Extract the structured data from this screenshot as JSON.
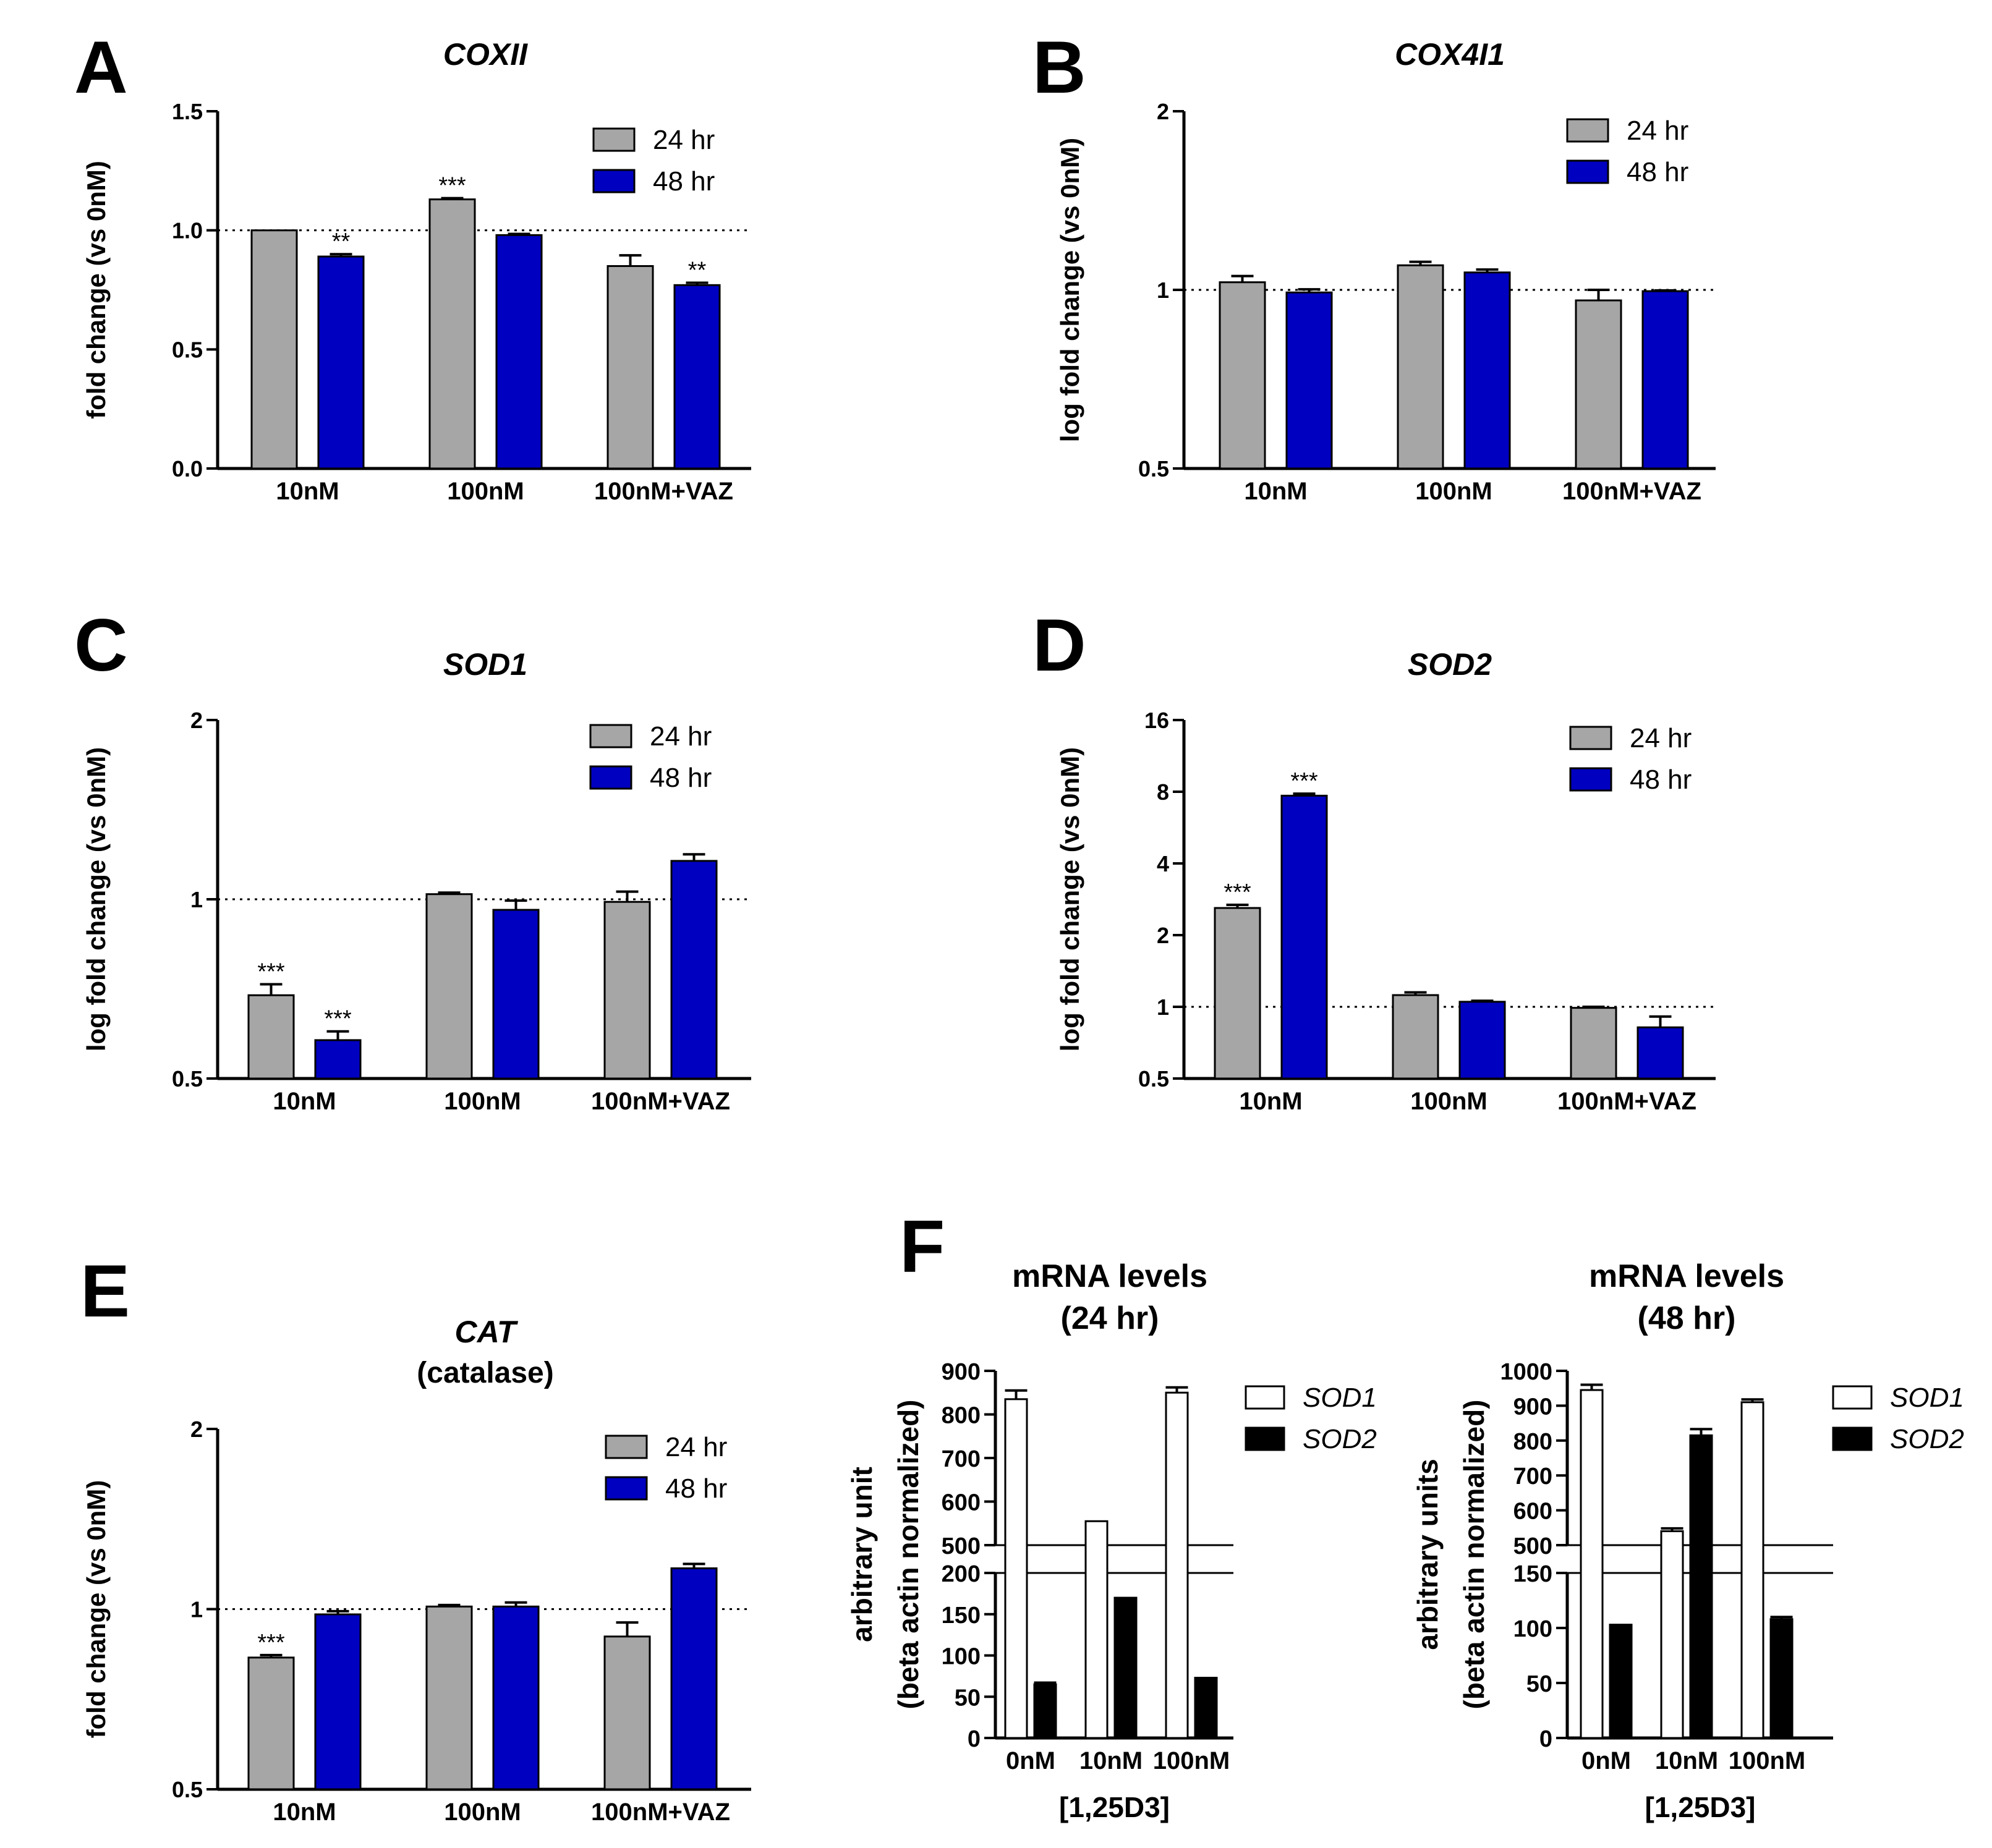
{
  "figure": {
    "colors": {
      "gray": "#a6a6a6",
      "blue": "#0000c0",
      "black": "#000000",
      "white": "#ffffff"
    }
  },
  "chart_data": [
    {
      "panel": "A",
      "type": "bar",
      "title": "COXII",
      "ylabel": "fold change (vs 0nM)",
      "scale": "linear",
      "ylim": [
        0,
        1.5
      ],
      "ticks": [
        0.0,
        0.5,
        1.0,
        1.5
      ],
      "tick_labels": [
        "0.0",
        "0.5",
        "1.0",
        "1.5"
      ],
      "categories": [
        "10nM",
        "100nM",
        "100nM+VAZ"
      ],
      "reference_line": 1.0,
      "series": [
        {
          "name": "24 hr",
          "color": "gray",
          "values": [
            1.0,
            1.13,
            0.85
          ],
          "errors": [
            0.0,
            0.005,
            0.045
          ],
          "sig": [
            "",
            "***",
            ""
          ]
        },
        {
          "name": "48 hr",
          "color": "blue",
          "values": [
            0.89,
            0.98,
            0.77
          ],
          "errors": [
            0.01,
            0.005,
            0.01
          ],
          "sig": [
            "**",
            "",
            "**"
          ]
        }
      ]
    },
    {
      "panel": "B",
      "type": "bar",
      "title": "COX4I1",
      "ylabel": "log fold change (vs 0nM)",
      "scale": "log2",
      "ylim": [
        0.5,
        2
      ],
      "ticks": [
        0.5,
        1,
        2
      ],
      "tick_labels": [
        "0.5",
        "1",
        "2"
      ],
      "categories": [
        "10nM",
        "100nM",
        "100nM+VAZ"
      ],
      "reference_line": 1,
      "series": [
        {
          "name": "24 hr",
          "color": "gray",
          "values": [
            1.03,
            1.1,
            0.96
          ],
          "errors": [
            0.025,
            0.015,
            0.04
          ],
          "sig": [
            "",
            "",
            ""
          ]
        },
        {
          "name": "48 hr",
          "color": "blue",
          "values": [
            0.99,
            1.07,
            0.995
          ],
          "errors": [
            0.012,
            0.012,
            0.003
          ],
          "sig": [
            "",
            "",
            ""
          ]
        }
      ]
    },
    {
      "panel": "C",
      "type": "bar",
      "title": "SOD1",
      "ylabel": "log fold change (vs 0nM)",
      "scale": "log2",
      "ylim": [
        0.5,
        2
      ],
      "ticks": [
        0.5,
        1,
        2
      ],
      "tick_labels": [
        "0.5",
        "1",
        "2"
      ],
      "categories": [
        "10nM",
        "100nM",
        "100nM+VAZ"
      ],
      "reference_line": 1,
      "series": [
        {
          "name": "24 hr",
          "color": "gray",
          "values": [
            0.69,
            1.02,
            0.99
          ],
          "errors": [
            0.03,
            0.006,
            0.04
          ],
          "sig": [
            "***",
            "",
            ""
          ]
        },
        {
          "name": "48 hr",
          "color": "blue",
          "values": [
            0.58,
            0.96,
            1.16
          ],
          "errors": [
            0.02,
            0.035,
            0.03
          ],
          "sig": [
            "***",
            "",
            ""
          ]
        }
      ]
    },
    {
      "panel": "D",
      "type": "bar",
      "title": "SOD2",
      "ylabel": "log fold change (vs 0nM)",
      "scale": "log2",
      "ylim": [
        0.5,
        16
      ],
      "ticks": [
        0.5,
        1,
        2,
        4,
        8,
        16
      ],
      "tick_labels": [
        "0.5",
        "1",
        "2",
        "4",
        "8",
        "16"
      ],
      "categories": [
        "10nM",
        "100nM",
        "100nM+VAZ"
      ],
      "reference_line": 1,
      "series": [
        {
          "name": "24 hr",
          "color": "gray",
          "values": [
            2.6,
            1.12,
            0.99
          ],
          "errors": [
            0.08,
            0.03,
            0.01
          ],
          "sig": [
            "***",
            "",
            ""
          ]
        },
        {
          "name": "48 hr",
          "color": "blue",
          "values": [
            7.7,
            1.05,
            0.82
          ],
          "errors": [
            0.15,
            0.01,
            0.09
          ],
          "sig": [
            "***",
            "",
            ""
          ]
        }
      ]
    },
    {
      "panel": "E",
      "type": "bar",
      "title": "CAT",
      "subtitle": "(catalase)",
      "ylabel": "fold change (vs 0nM)",
      "scale": "log2",
      "ylim": [
        0.5,
        2
      ],
      "ticks": [
        0.5,
        1,
        2
      ],
      "tick_labels": [
        "0.5",
        "1",
        "2"
      ],
      "categories": [
        "10nM",
        "100nM",
        "100nM+VAZ"
      ],
      "reference_line": 1,
      "series": [
        {
          "name": "24 hr",
          "color": "gray",
          "values": [
            0.83,
            1.01,
            0.9
          ],
          "errors": [
            0.008,
            0.006,
            0.05
          ],
          "sig": [
            "***",
            "",
            ""
          ]
        },
        {
          "name": "48 hr",
          "color": "blue",
          "values": [
            0.98,
            1.01,
            1.17
          ],
          "errors": [
            0.012,
            0.016,
            0.02
          ],
          "sig": [
            "",
            "",
            ""
          ]
        }
      ]
    },
    {
      "panel": "F",
      "type": "bar",
      "title": "mRNA levels",
      "subtitle": "(24 hr)",
      "ylabel": "arbitrary unit",
      "ylabel2": "(beta actin normalized)",
      "scale": "broken",
      "ylim": [
        0,
        900
      ],
      "lower_ticks": [
        0,
        50,
        100,
        150,
        200
      ],
      "lower_tick_labels": [
        "0",
        "50",
        "100",
        "150",
        "200"
      ],
      "upper_ticks": [
        500,
        600,
        700,
        800,
        900
      ],
      "upper_tick_labels": [
        "500",
        "600",
        "700",
        "800",
        "900"
      ],
      "categories": [
        "0nM",
        "10nM",
        "100nM"
      ],
      "xlabel": "[1,25D3]",
      "series": [
        {
          "name": "SOD1",
          "color": "white",
          "values": [
            835,
            555,
            850
          ],
          "errors": [
            20,
            0,
            12
          ],
          "sig": [
            "",
            "",
            ""
          ]
        },
        {
          "name": "SOD2",
          "color": "black",
          "values": [
            65,
            170,
            73
          ],
          "errors": [
            2,
            0,
            0
          ],
          "sig": [
            "",
            "",
            ""
          ]
        }
      ]
    },
    {
      "panel": "",
      "type": "bar",
      "title": "mRNA levels",
      "subtitle": "(48 hr)",
      "ylabel": "arbitrary units",
      "ylabel2": "(beta actin normalized)",
      "scale": "broken",
      "ylim": [
        0,
        1000
      ],
      "lower_ticks": [
        0,
        50,
        100,
        150
      ],
      "lower_tick_labels": [
        "0",
        "50",
        "100",
        "150"
      ],
      "upper_ticks": [
        500,
        600,
        700,
        800,
        900,
        1000
      ],
      "upper_tick_labels": [
        "500",
        "600",
        "700",
        "800",
        "900",
        "1000"
      ],
      "categories": [
        "0nM",
        "10nM",
        "100nM"
      ],
      "xlabel": "[1,25D3]",
      "series": [
        {
          "name": "SOD1",
          "color": "white",
          "values": [
            945,
            540,
            910
          ],
          "errors": [
            15,
            8,
            8
          ],
          "sig": [
            "",
            "",
            ""
          ]
        },
        {
          "name": "SOD2",
          "color": "black",
          "values": [
            103,
            815,
            108
          ],
          "errors": [
            0,
            18,
            2
          ],
          "sig": [
            "",
            "",
            ""
          ]
        }
      ]
    }
  ]
}
